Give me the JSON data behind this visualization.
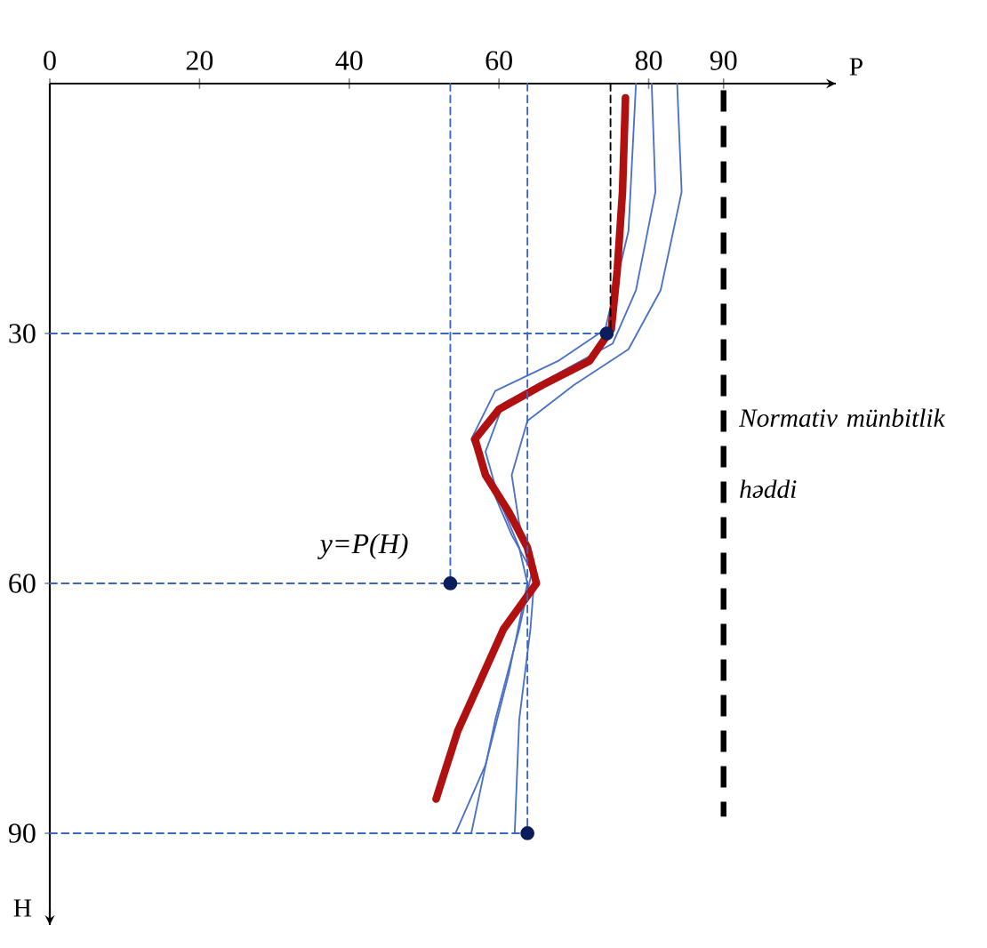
{
  "chart_data": {
    "type": "line",
    "orientation": "horizontal",
    "xlabel": "P",
    "ylabel": "H",
    "xlim": [
      0,
      105
    ],
    "ylim": [
      101,
      0
    ],
    "xticks": [
      0,
      20,
      40,
      60,
      80,
      90
    ],
    "yticks": [
      30,
      60,
      90
    ],
    "grid": false,
    "marker": "none",
    "line_style": "solid",
    "series": [
      {
        "color": "#4a72c8",
        "values": [
          83.8,
          84.4,
          81.6,
          77.3,
          70,
          63.8,
          61.7,
          62.7,
          64.8,
          64.2,
          62.7,
          62.1
        ],
        "x": [
          0,
          13,
          24.8,
          31.9,
          36.2,
          40.5,
          47,
          52.8,
          58.6,
          65.5,
          76.4,
          90
        ]
      },
      {
        "color": "#4a72c8",
        "values": [
          80.4,
          80.9,
          78.3,
          75.2,
          67.9,
          60.6,
          58.2,
          60,
          62.7,
          63.8,
          61.3,
          58.2,
          54.2
        ],
        "x": [
          0,
          13,
          24.8,
          31.2,
          34.8,
          38.4,
          44.2,
          49.9,
          55.7,
          60,
          70.9,
          81.8,
          90
        ]
      },
      {
        "color": "#4a72c8",
        "values": [
          78.3,
          77.3,
          74.2,
          67.9,
          59.5,
          56.3,
          59,
          61.7,
          64.4,
          62.7,
          59.5,
          56.3
        ],
        "x": [
          0,
          17.7,
          29.5,
          33.3,
          36.9,
          42.7,
          48.5,
          54.2,
          58.6,
          65.5,
          76.4,
          90
        ]
      },
      {
        "color": "#b01010",
        "values": [
          76.9,
          76.5,
          75.8,
          75.0,
          72.1,
          65.8,
          60,
          56.8,
          58.2,
          61.3,
          63.8,
          65,
          60.6,
          57.2,
          54.5,
          51.6
        ],
        "x": [
          1.7,
          13,
          22.4,
          29.5,
          33.3,
          36.2,
          39.1,
          42.7,
          47,
          51.4,
          55.7,
          60,
          65.5,
          72.3,
          77.7,
          85.9
        ]
      },
      {
        "color": "#3a66c4",
        "line_style": "dashed",
        "values": [
          0,
          74.4
        ],
        "x": [
          30,
          30
        ]
      },
      {
        "color": "#3a66c4",
        "line_style": "dashed",
        "values": [
          0,
          63.8
        ],
        "x": [
          60,
          60
        ]
      },
      {
        "color": "#3a66c4",
        "line_style": "dashed",
        "values": [
          0,
          63.8
        ],
        "x": [
          90,
          90
        ]
      },
      {
        "color": "#3a66c4",
        "line_style": "dashed",
        "values": [
          53.5,
          53.5
        ],
        "x": [
          0,
          60
        ]
      },
      {
        "color": "#3a66c4",
        "line_style": "dashed",
        "values": [
          63.8,
          63.8
        ],
        "x": [
          0,
          90
        ]
      },
      {
        "color": "#000000",
        "line_style": "dashed",
        "values": [
          74.9,
          74.9
        ],
        "x": [
          0,
          30
        ]
      },
      {
        "type": "scatter",
        "marker": "circle",
        "color": "#0b1e5b",
        "values": [
          74.4,
          53.5,
          63.8
        ],
        "x": [
          30,
          60,
          90
        ]
      }
    ],
    "ref_lines": [
      {
        "axis": "x",
        "value": 90,
        "label": "Normativ münbitlik həddi",
        "color": "#000000",
        "line_style": "dashed"
      }
    ],
    "annotations": [
      "y=P(H)"
    ]
  }
}
